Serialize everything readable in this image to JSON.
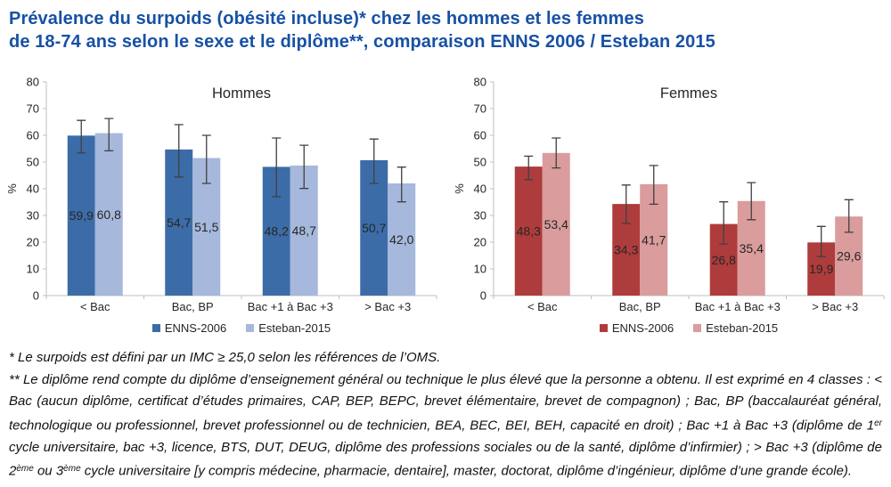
{
  "header": {
    "title_line1": "Prévalence du surpoids (obésité incluse)* chez les hommes et les femmes",
    "title_line2": "de 18-74 ans selon le sexe et le diplôme**, comparaison ENNS 2006 / Esteban 2015"
  },
  "palette": {
    "title_blue": "#1751A5",
    "axis_line": "#BFBFBF",
    "error_bar": "#404040",
    "text": "#262626",
    "bar_label": "#FFFFFF",
    "background": "#FFFFFF"
  },
  "chart_data": [
    {
      "type": "bar",
      "title": "Hommes",
      "ylabel": "%",
      "xlabel": "",
      "ylim": [
        0,
        80
      ],
      "ytick_step": 10,
      "grid": false,
      "legend_position": "bottom",
      "categories": [
        "< Bac",
        "Bac, BP",
        "Bac +1 à Bac +3",
        "> Bac +3"
      ],
      "series": [
        {
          "name": "ENNS-2006",
          "color": "#3C6CA8",
          "values": [
            59.9,
            54.7,
            48.2,
            50.7
          ],
          "ci": [
            [
              53.4,
              65.6
            ],
            [
              44.4,
              64.0
            ],
            [
              37.0,
              59.0
            ],
            [
              42.0,
              58.6
            ]
          ]
        },
        {
          "name": "Esteban-2015",
          "color": "#A6B8DB",
          "values": [
            60.8,
            51.5,
            48.7,
            42.0
          ],
          "ci": [
            [
              54.2,
              66.3
            ],
            [
              42.0,
              60.0
            ],
            [
              40.1,
              56.3
            ],
            [
              35.1,
              48.1
            ]
          ]
        }
      ]
    },
    {
      "type": "bar",
      "title": "Femmes",
      "ylabel": "%",
      "xlabel": "",
      "ylim": [
        0,
        80
      ],
      "ytick_step": 10,
      "grid": false,
      "legend_position": "bottom",
      "categories": [
        "< Bac",
        "Bac, BP",
        "Bac +1 à Bac +3",
        "> Bac +3"
      ],
      "series": [
        {
          "name": "ENNS-2006",
          "color": "#AE3C3C",
          "values": [
            48.3,
            34.3,
            26.8,
            19.9
          ],
          "ci": [
            [
              43.4,
              52.2
            ],
            [
              27.0,
              41.4
            ],
            [
              19.3,
              35.1
            ],
            [
              14.6,
              25.9
            ]
          ]
        },
        {
          "name": "Esteban-2015",
          "color": "#DA9C9C",
          "values": [
            53.4,
            41.7,
            35.4,
            29.6
          ],
          "ci": [
            [
              47.8,
              59.0
            ],
            [
              34.2,
              48.7
            ],
            [
              28.4,
              42.3
            ],
            [
              23.7,
              35.9
            ]
          ]
        }
      ]
    }
  ],
  "footnotes": {
    "line1": "* Le surpoids est défini par un IMC ≥ 25,0 selon les références de l’OMS.",
    "para2_segments": [
      {
        "text": "** Le diplôme rend compte du diplôme d’enseignement général ou technique le plus élevé que la personne a obtenu. Il est exprimé en 4 classes : < Bac (aucun diplôme, certificat d’études primaires, CAP, BEP, BEPC, brevet élémentaire, brevet de compagnon) ; Bac, BP (baccalauréat général, technologique ou professionnel, brevet professionnel ou de technicien, BEA, BEC, BEI, BEH, capacité en droit) ; Bac +1 à Bac +3 (diplôme de 1",
        "sup": false
      },
      {
        "text": "er",
        "sup": true
      },
      {
        "text": " cycle universitaire, bac +3, licence, BTS, DUT, DEUG, diplôme des professions sociales ou de la santé, diplôme d’infirmier) ; > Bac +3 (diplôme de 2",
        "sup": false
      },
      {
        "text": "ème",
        "sup": true
      },
      {
        "text": " ou 3",
        "sup": false
      },
      {
        "text": "ème",
        "sup": true
      },
      {
        "text": " cycle universitaire [y compris médecine, pharmacie, dentaire], master, doctorat, diplôme d’ingénieur, diplôme d’une grande école).",
        "sup": false
      }
    ]
  }
}
